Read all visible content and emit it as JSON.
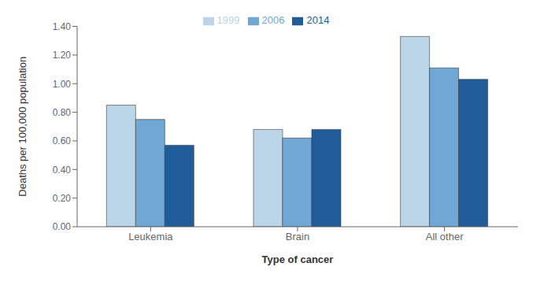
{
  "chart_data": {
    "type": "bar",
    "xlabel": "Type of cancer",
    "ylabel": "Deaths per 100,000 population",
    "categories": [
      "Leukemia",
      "Brain",
      "All other"
    ],
    "series": [
      {
        "name": "1999",
        "color": "#bad4e8",
        "values": [
          0.85,
          0.68,
          1.33
        ]
      },
      {
        "name": "2006",
        "color": "#6fa8d4",
        "values": [
          0.75,
          0.62,
          1.11
        ]
      },
      {
        "name": "2014",
        "color": "#1f5c99",
        "values": [
          0.57,
          0.68,
          1.03
        ]
      }
    ],
    "ylim": [
      0.0,
      1.4
    ],
    "yticks": [
      {
        "value": 0.0,
        "label": "0.00"
      },
      {
        "value": 0.2,
        "label": "0.20"
      },
      {
        "value": 0.4,
        "label": "0.40"
      },
      {
        "value": 0.6,
        "label": "0.60"
      },
      {
        "value": 0.8,
        "label": "0.80"
      },
      {
        "value": 1.0,
        "label": "1.00"
      },
      {
        "value": 1.2,
        "label": "1.20"
      },
      {
        "value": 1.4,
        "label": "1.40"
      }
    ],
    "grid": false,
    "legend": "top"
  }
}
